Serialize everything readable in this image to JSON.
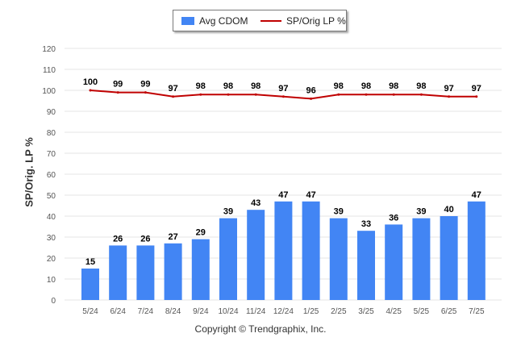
{
  "legend": {
    "bar_label": "Avg CDOM",
    "line_label": "SP/Orig LP %"
  },
  "footer": {
    "copyright": "Copyright © Trendgraphix, Inc."
  },
  "colors": {
    "bar": "#4285f4",
    "line": "#c00000",
    "grid": "#e6e6e6",
    "axis_text": "#555555"
  },
  "chart_data": {
    "type": "bar",
    "ylabel": "SP/Orig. LP %",
    "ylim": [
      0,
      120
    ],
    "yticks": [
      0,
      10,
      20,
      30,
      40,
      50,
      60,
      70,
      80,
      90,
      100,
      110,
      120
    ],
    "grid": true,
    "legend_position": "top-center",
    "categories": [
      "5/24",
      "6/24",
      "7/24",
      "8/24",
      "9/24",
      "10/24",
      "11/24",
      "12/24",
      "1/25",
      "2/25",
      "3/25",
      "4/25",
      "5/25",
      "6/25",
      "7/25"
    ],
    "series": [
      {
        "name": "Avg CDOM",
        "type": "bar",
        "values": [
          15,
          26,
          26,
          27,
          29,
          39,
          43,
          47,
          47,
          39,
          33,
          36,
          39,
          40,
          47
        ]
      },
      {
        "name": "SP/Orig LP %",
        "type": "line",
        "values": [
          100,
          99,
          99,
          97,
          98,
          98,
          98,
          97,
          96,
          98,
          98,
          98,
          98,
          97,
          97
        ]
      }
    ]
  }
}
